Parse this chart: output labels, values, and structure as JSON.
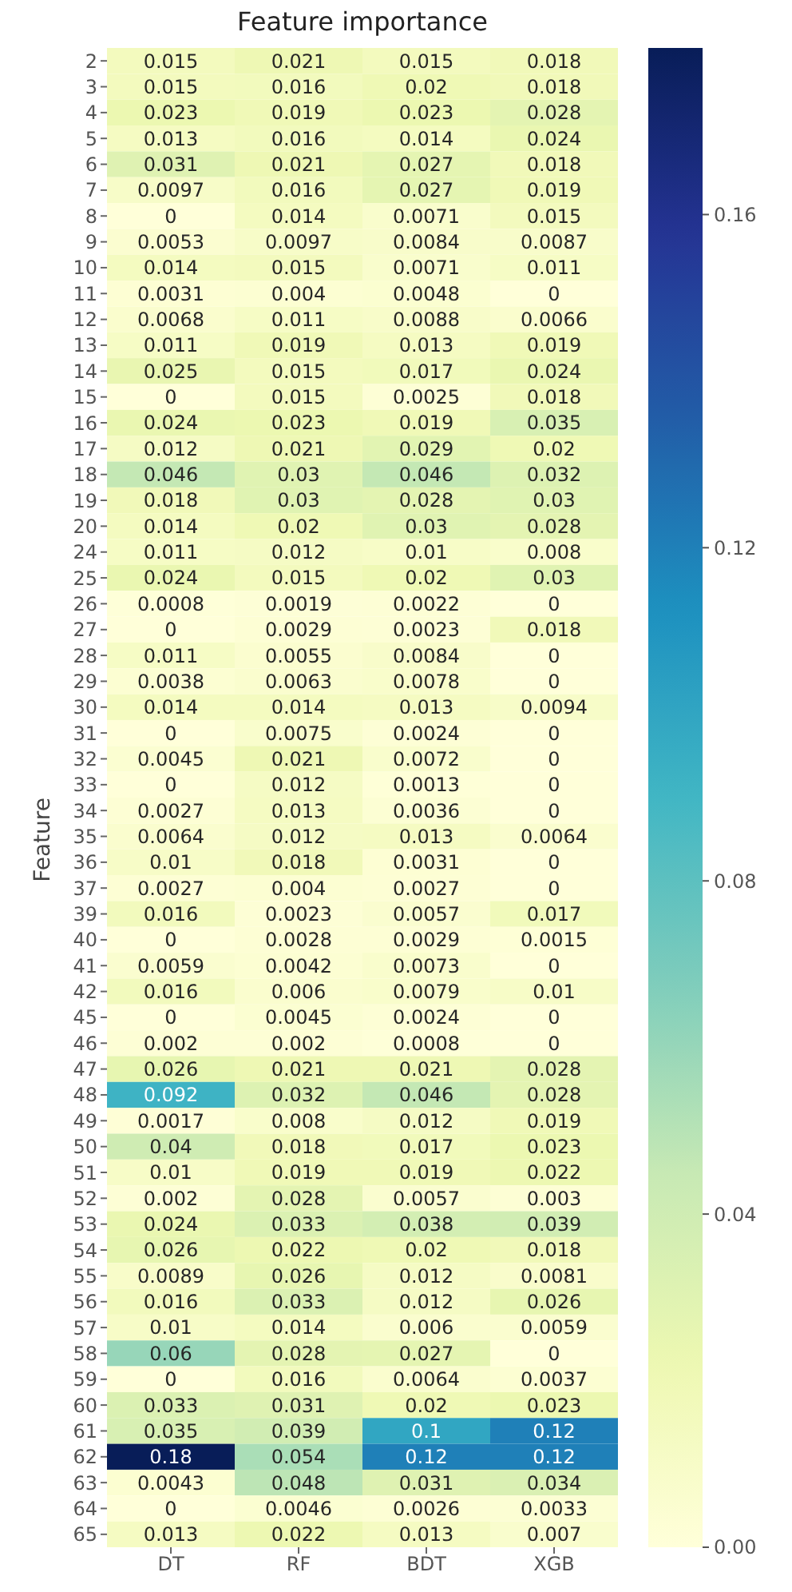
{
  "chart_data": {
    "type": "heatmap",
    "title": "Feature importance",
    "ylabel": "Feature",
    "categories": [
      "DT",
      "RF",
      "BDT",
      "XGB"
    ],
    "y_categories": [
      "2",
      "3",
      "4",
      "5",
      "6",
      "7",
      "8",
      "9",
      "10",
      "11",
      "12",
      "13",
      "14",
      "15",
      "16",
      "17",
      "18",
      "19",
      "20",
      "24",
      "25",
      "26",
      "27",
      "28",
      "29",
      "30",
      "31",
      "32",
      "33",
      "34",
      "35",
      "36",
      "37",
      "39",
      "40",
      "41",
      "42",
      "45",
      "46",
      "47",
      "48",
      "49",
      "50",
      "51",
      "52",
      "53",
      "54",
      "55",
      "56",
      "57",
      "58",
      "59",
      "60",
      "61",
      "62",
      "63",
      "64",
      "65"
    ],
    "cells": [
      [
        0.015,
        0.021,
        0.015,
        0.018
      ],
      [
        0.015,
        0.016,
        0.02,
        0.018
      ],
      [
        0.023,
        0.019,
        0.023,
        0.028
      ],
      [
        0.013,
        0.016,
        0.014,
        0.024
      ],
      [
        0.031,
        0.021,
        0.027,
        0.018
      ],
      [
        0.0097,
        0.016,
        0.027,
        0.019
      ],
      [
        0,
        0.014,
        0.0071,
        0.015
      ],
      [
        0.0053,
        0.0097,
        0.0084,
        0.0087
      ],
      [
        0.014,
        0.015,
        0.0071,
        0.011
      ],
      [
        0.0031,
        0.004,
        0.0048,
        0
      ],
      [
        0.0068,
        0.011,
        0.0088,
        0.0066
      ],
      [
        0.011,
        0.019,
        0.013,
        0.019
      ],
      [
        0.025,
        0.015,
        0.017,
        0.024
      ],
      [
        0,
        0.015,
        0.0025,
        0.018
      ],
      [
        0.024,
        0.023,
        0.019,
        0.035
      ],
      [
        0.012,
        0.021,
        0.029,
        0.02
      ],
      [
        0.046,
        0.03,
        0.046,
        0.032
      ],
      [
        0.018,
        0.03,
        0.028,
        0.03
      ],
      [
        0.014,
        0.02,
        0.03,
        0.028
      ],
      [
        0.011,
        0.012,
        0.01,
        0.008
      ],
      [
        0.024,
        0.015,
        0.02,
        0.03
      ],
      [
        0.0008,
        0.0019,
        0.0022,
        0
      ],
      [
        0,
        0.0029,
        0.0023,
        0.018
      ],
      [
        0.011,
        0.0055,
        0.0084,
        0
      ],
      [
        0.0038,
        0.0063,
        0.0078,
        0
      ],
      [
        0.014,
        0.014,
        0.013,
        0.0094
      ],
      [
        0,
        0.0075,
        0.0024,
        0
      ],
      [
        0.0045,
        0.021,
        0.0072,
        0
      ],
      [
        0,
        0.012,
        0.0013,
        0
      ],
      [
        0.0027,
        0.013,
        0.0036,
        0
      ],
      [
        0.0064,
        0.012,
        0.013,
        0.0064
      ],
      [
        0.01,
        0.018,
        0.0031,
        0
      ],
      [
        0.0027,
        0.004,
        0.0027,
        0
      ],
      [
        0.016,
        0.0023,
        0.0057,
        0.017
      ],
      [
        0,
        0.0028,
        0.0029,
        0.0015
      ],
      [
        0.0059,
        0.0042,
        0.0073,
        0
      ],
      [
        0.016,
        0.006,
        0.0079,
        0.01
      ],
      [
        0,
        0.0045,
        0.0024,
        0
      ],
      [
        0.002,
        0.002,
        0.0008,
        0
      ],
      [
        0.026,
        0.021,
        0.021,
        0.028
      ],
      [
        0.092,
        0.032,
        0.046,
        0.028
      ],
      [
        0.0017,
        0.008,
        0.012,
        0.019
      ],
      [
        0.04,
        0.018,
        0.017,
        0.023
      ],
      [
        0.01,
        0.019,
        0.019,
        0.022
      ],
      [
        0.002,
        0.028,
        0.0057,
        0.003
      ],
      [
        0.024,
        0.033,
        0.038,
        0.039
      ],
      [
        0.026,
        0.022,
        0.02,
        0.018
      ],
      [
        0.0089,
        0.026,
        0.012,
        0.0081
      ],
      [
        0.016,
        0.033,
        0.012,
        0.026
      ],
      [
        0.01,
        0.014,
        0.006,
        0.0059
      ],
      [
        0.06,
        0.028,
        0.027,
        0
      ],
      [
        0,
        0.016,
        0.0064,
        0.0037
      ],
      [
        0.033,
        0.031,
        0.02,
        0.023
      ],
      [
        0.035,
        0.039,
        0.1,
        0.12
      ],
      [
        0.18,
        0.054,
        0.12,
        0.12
      ],
      [
        0.0043,
        0.048,
        0.031,
        0.034
      ],
      [
        0,
        0.0046,
        0.0026,
        0.0033
      ],
      [
        0.013,
        0.022,
        0.013,
        0.007
      ]
    ],
    "clim": [
      0,
      0.18
    ],
    "cticks": [
      {
        "value": 0,
        "label": "0.00"
      },
      {
        "value": 0.04,
        "label": "0.04"
      },
      {
        "value": 0.08,
        "label": "0.08"
      },
      {
        "value": 0.12,
        "label": "0.12"
      },
      {
        "value": 0.16,
        "label": "0.16"
      }
    ],
    "data_labels": true
  }
}
